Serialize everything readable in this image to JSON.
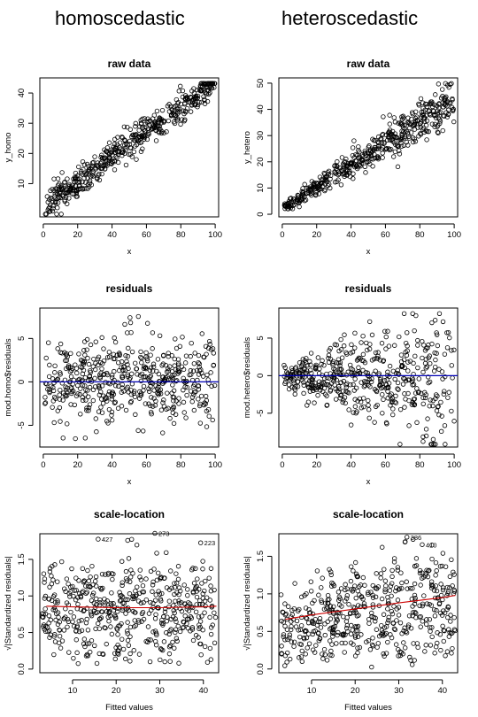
{
  "column_titles": {
    "left": "homoscedastic",
    "right": "heteroscedastic"
  },
  "chart_data": [
    {
      "id": "p1",
      "type": "scatter",
      "title": "raw data",
      "xlabel": "x",
      "ylabel": "y_homo",
      "xlim": [
        -2,
        102
      ],
      "ylim": [
        -1,
        45
      ],
      "xticks": [
        0,
        20,
        40,
        60,
        80,
        100
      ],
      "yticks": [
        10,
        20,
        30,
        40
      ],
      "model": {
        "kind": "linear",
        "intercept": 2,
        "slope": 0.42,
        "noise_sd": 2.6,
        "x_range": [
          1,
          100
        ],
        "n": 500
      }
    },
    {
      "id": "p2",
      "type": "scatter",
      "title": "raw data",
      "xlabel": "x",
      "ylabel": "y_hetero",
      "xlim": [
        -2,
        102
      ],
      "ylim": [
        -1,
        52
      ],
      "xticks": [
        0,
        20,
        40,
        60,
        80,
        100
      ],
      "yticks": [
        0,
        10,
        20,
        30,
        40,
        50
      ],
      "model": {
        "kind": "linear_hetero",
        "intercept": 2,
        "slope": 0.42,
        "noise_sd_at_0": 0.8,
        "noise_sd_at_100": 5.0,
        "x_range": [
          1,
          100
        ],
        "n": 500
      }
    },
    {
      "id": "p3",
      "type": "scatter",
      "title": "residuals",
      "xlabel": "x",
      "ylabel": "mod.homo$residuals",
      "xlim": [
        -2,
        102
      ],
      "ylim": [
        -7.5,
        8.5
      ],
      "xticks": [
        0,
        20,
        40,
        60,
        80,
        100
      ],
      "yticks": [
        -5,
        0,
        5
      ],
      "reference_line": {
        "y": 0,
        "color": "#0000b4"
      },
      "model": {
        "kind": "residual",
        "noise_sd": 2.6,
        "x_range": [
          1,
          100
        ],
        "n": 500
      }
    },
    {
      "id": "p4",
      "type": "scatter",
      "title": "residuals",
      "xlabel": "x",
      "ylabel": "mod.hetero$residuals",
      "xlim": [
        -2,
        102
      ],
      "ylim": [
        -9.5,
        9
      ],
      "xticks": [
        0,
        20,
        40,
        60,
        80,
        100
      ],
      "yticks": [
        -5,
        0,
        5
      ],
      "reference_line": {
        "y": 0,
        "color": "#0000b4"
      },
      "model": {
        "kind": "residual_hetero",
        "noise_sd_at_0": 0.8,
        "noise_sd_at_100": 5.0,
        "x_range": [
          1,
          100
        ],
        "n": 500
      }
    },
    {
      "id": "p5",
      "type": "scatter",
      "title": "scale-location",
      "xlabel": "Fitted values",
      "ylabel": "√|Standardized residuals|",
      "xlim": [
        2.5,
        43.5
      ],
      "ylim": [
        -0.05,
        1.85
      ],
      "xticks": [
        10,
        20,
        30,
        40
      ],
      "yticks": [
        0.0,
        0.5,
        1.0,
        1.5
      ],
      "smoother": {
        "color": "#cc0000",
        "points": [
          [
            4,
            0.86
          ],
          [
            10,
            0.85
          ],
          [
            20,
            0.84
          ],
          [
            30,
            0.84
          ],
          [
            40,
            0.85
          ],
          [
            43,
            0.86
          ]
        ]
      },
      "annotations": [
        {
          "text": "427",
          "x": 17.5,
          "y": 1.74
        },
        {
          "text": "273",
          "x": 30.5,
          "y": 1.82
        },
        {
          "text": "223",
          "x": 41.0,
          "y": 1.69
        }
      ],
      "model": {
        "kind": "scale_location",
        "x_range": [
          3,
          43
        ],
        "n": 500
      }
    },
    {
      "id": "p6",
      "type": "scatter",
      "title": "scale-location",
      "xlabel": "Fitted values",
      "ylabel": "√|Standardized residuals|",
      "xlim": [
        2.5,
        43.5
      ],
      "ylim": [
        -0.05,
        1.8
      ],
      "xticks": [
        10,
        20,
        30,
        40
      ],
      "yticks": [
        0.0,
        0.5,
        1.0,
        1.5
      ],
      "smoother": {
        "color": "#cc0000",
        "points": [
          [
            4,
            0.66
          ],
          [
            10,
            0.72
          ],
          [
            20,
            0.8
          ],
          [
            30,
            0.88
          ],
          [
            40,
            0.95
          ],
          [
            43,
            0.98
          ]
        ]
      },
      "annotations": [
        {
          "text": "386",
          "x": 33.5,
          "y": 1.72
        },
        {
          "text": "410",
          "x": 37.0,
          "y": 1.62
        }
      ],
      "model": {
        "kind": "scale_location_hetero",
        "x_range": [
          3,
          43
        ],
        "n": 500
      }
    }
  ]
}
